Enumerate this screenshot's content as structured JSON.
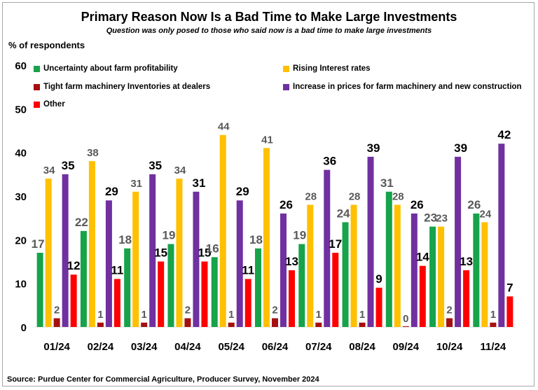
{
  "chart_data": {
    "type": "bar",
    "title": "Primary Reason Now Is a Bad Time to Make Large Investments",
    "subtitle": "Question was only posed to those who said now is a bad time to make large investments",
    "ylabel": "% of respondents",
    "xlabel": "",
    "ylim": [
      0,
      60
    ],
    "yticks": [
      0,
      10,
      20,
      30,
      40,
      50,
      60
    ],
    "categories": [
      "01/24",
      "02/24",
      "03/24",
      "04/24",
      "05/24",
      "06/24",
      "07/24",
      "08/24",
      "09/24",
      "10/24",
      "11/24"
    ],
    "series": [
      {
        "name": "Uncertainty about farm profitability",
        "color": "#16a34a",
        "label_color": "#595959",
        "values": [
          17,
          22,
          18,
          19,
          16,
          18,
          19,
          24,
          31,
          23,
          26
        ]
      },
      {
        "name": "Rising Interest rates",
        "color": "#ffc000",
        "label_color": "#595959",
        "values": [
          34,
          38,
          31,
          34,
          44,
          41,
          28,
          28,
          28,
          23,
          24
        ]
      },
      {
        "name": "Tight farm machinery Inventories at dealers",
        "color": "#a50f0f",
        "label_color": "#595959",
        "values": [
          2,
          1,
          1,
          2,
          1,
          2,
          1,
          1,
          0,
          2,
          1
        ]
      },
      {
        "name": "Increase in prices for farm machinery and new construction",
        "color": "#7030a0",
        "label_color": "#000000",
        "values": [
          35,
          29,
          35,
          31,
          29,
          26,
          36,
          39,
          26,
          39,
          42
        ]
      },
      {
        "name": "Other",
        "color": "#ff0000",
        "label_color": "#000000",
        "values": [
          12,
          11,
          15,
          15,
          11,
          13,
          17,
          9,
          14,
          13,
          7
        ]
      }
    ]
  },
  "source": "Source: Purdue Center for Commercial Agriculture, Producer Survey, November 2024"
}
